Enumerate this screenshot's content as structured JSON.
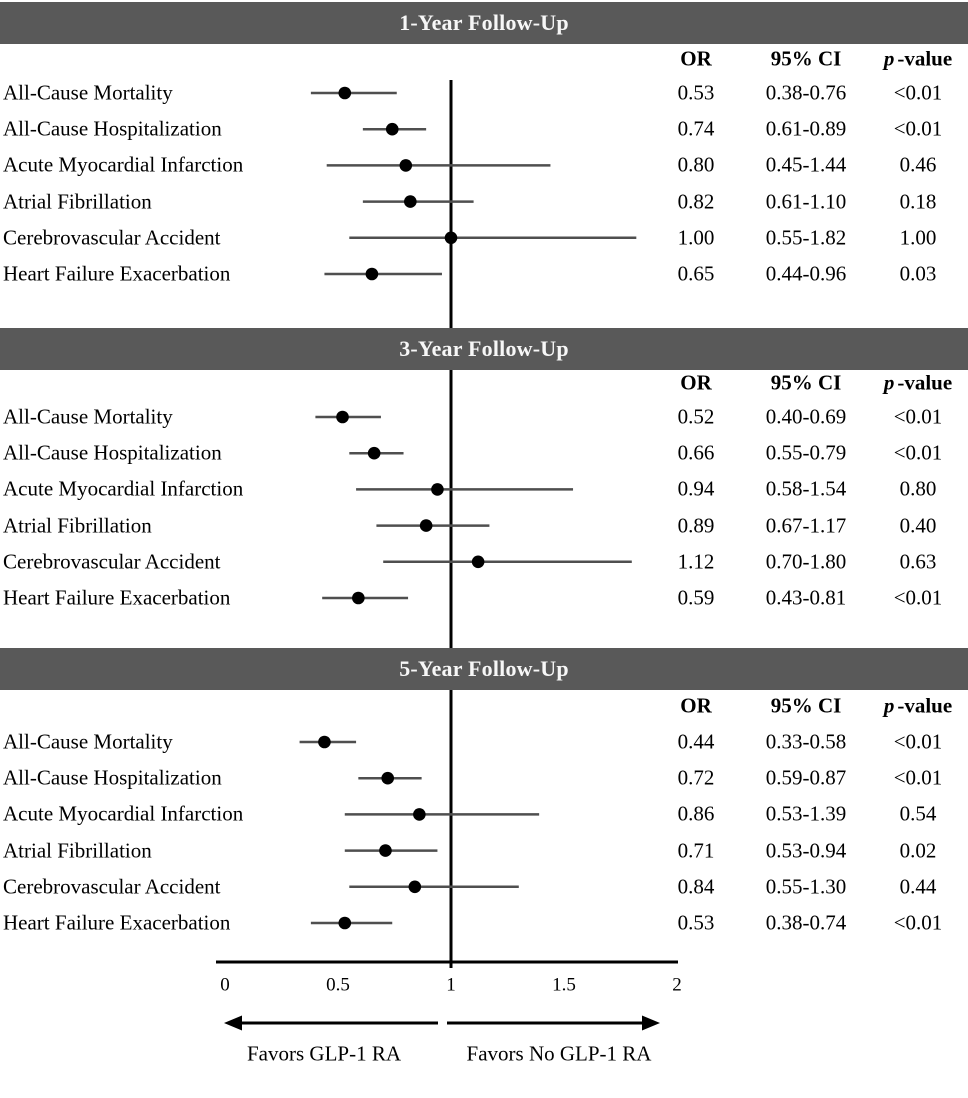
{
  "chart_data": {
    "type": "forest",
    "title": "",
    "xlabel": "",
    "x_axis": {
      "range": [
        0,
        2
      ],
      "tick_labels": [
        "0",
        "0.5",
        "1",
        "1.5",
        "2"
      ],
      "tick_values": [
        0,
        0.5,
        1,
        1.5,
        2
      ],
      "reference_line": 1
    },
    "favors_left": "Favors GLP-1 RA",
    "favors_right": "Favors No GLP-1 RA",
    "sections": [
      {
        "title": "1-Year Follow-Up",
        "rows": [
          {
            "label": "All-Cause Mortality",
            "or": 0.53,
            "ci_low": 0.38,
            "ci_high": 0.76,
            "or_text": "0.53",
            "ci_text": "0.38-0.76",
            "p_text": "<0.01"
          },
          {
            "label": "All-Cause Hospitalization",
            "or": 0.74,
            "ci_low": 0.61,
            "ci_high": 0.89,
            "or_text": "0.74",
            "ci_text": "0.61-0.89",
            "p_text": "<0.01"
          },
          {
            "label": "Acute Myocardial Infarction",
            "or": 0.8,
            "ci_low": 0.45,
            "ci_high": 1.44,
            "or_text": "0.80",
            "ci_text": "0.45-1.44",
            "p_text": "0.46"
          },
          {
            "label": "Atrial Fibrillation",
            "or": 0.82,
            "ci_low": 0.61,
            "ci_high": 1.1,
            "or_text": "0.82",
            "ci_text": "0.61-1.10",
            "p_text": "0.18"
          },
          {
            "label": "Cerebrovascular Accident",
            "or": 1.0,
            "ci_low": 0.55,
            "ci_high": 1.82,
            "or_text": "1.00",
            "ci_text": "0.55-1.82",
            "p_text": "1.00"
          },
          {
            "label": "Heart Failure Exacerbation",
            "or": 0.65,
            "ci_low": 0.44,
            "ci_high": 0.96,
            "or_text": "0.65",
            "ci_text": "0.44-0.96",
            "p_text": "0.03"
          }
        ]
      },
      {
        "title": "3-Year Follow-Up",
        "rows": [
          {
            "label": "All-Cause Mortality",
            "or": 0.52,
            "ci_low": 0.4,
            "ci_high": 0.69,
            "or_text": "0.52",
            "ci_text": "0.40-0.69",
            "p_text": "<0.01"
          },
          {
            "label": "All-Cause Hospitalization",
            "or": 0.66,
            "ci_low": 0.55,
            "ci_high": 0.79,
            "or_text": "0.66",
            "ci_text": "0.55-0.79",
            "p_text": "<0.01"
          },
          {
            "label": "Acute Myocardial Infarction",
            "or": 0.94,
            "ci_low": 0.58,
            "ci_high": 1.54,
            "or_text": "0.94",
            "ci_text": "0.58-1.54",
            "p_text": "0.80"
          },
          {
            "label": "Atrial Fibrillation",
            "or": 0.89,
            "ci_low": 0.67,
            "ci_high": 1.17,
            "or_text": "0.89",
            "ci_text": "0.67-1.17",
            "p_text": "0.40"
          },
          {
            "label": "Cerebrovascular Accident",
            "or": 1.12,
            "ci_low": 0.7,
            "ci_high": 1.8,
            "or_text": "1.12",
            "ci_text": "0.70-1.80",
            "p_text": "0.63"
          },
          {
            "label": "Heart Failure Exacerbation",
            "or": 0.59,
            "ci_low": 0.43,
            "ci_high": 0.81,
            "or_text": "0.59",
            "ci_text": "0.43-0.81",
            "p_text": "<0.01"
          }
        ]
      },
      {
        "title": "5-Year Follow-Up",
        "rows": [
          {
            "label": "All-Cause Mortality",
            "or": 0.44,
            "ci_low": 0.33,
            "ci_high": 0.58,
            "or_text": "0.44",
            "ci_text": "0.33-0.58",
            "p_text": "<0.01"
          },
          {
            "label": "All-Cause Hospitalization",
            "or": 0.72,
            "ci_low": 0.59,
            "ci_high": 0.87,
            "or_text": "0.72",
            "ci_text": "0.59-0.87",
            "p_text": "<0.01"
          },
          {
            "label": "Acute Myocardial Infarction",
            "or": 0.86,
            "ci_low": 0.53,
            "ci_high": 1.39,
            "or_text": "0.86",
            "ci_text": "0.53-1.39",
            "p_text": "0.54"
          },
          {
            "label": "Atrial Fibrillation",
            "or": 0.71,
            "ci_low": 0.53,
            "ci_high": 0.94,
            "or_text": "0.71",
            "ci_text": "0.53-0.94",
            "p_text": "0.02"
          },
          {
            "label": "Cerebrovascular Accident",
            "or": 0.84,
            "ci_low": 0.55,
            "ci_high": 1.3,
            "or_text": "0.84",
            "ci_text": "0.55-1.30",
            "p_text": "0.44"
          },
          {
            "label": "Heart Failure Exacerbation",
            "or": 0.53,
            "ci_low": 0.38,
            "ci_high": 0.74,
            "or_text": "0.53",
            "ci_text": "0.38-0.74",
            "p_text": "<0.01"
          }
        ]
      }
    ]
  },
  "columns": {
    "or": "OR",
    "ci": "95% CI",
    "p_italic": "p",
    "p_rest": "-value"
  },
  "colors": {
    "header_bg": "#595959",
    "header_text": "#F7F7F7",
    "point": "#000000",
    "ci_line": "#4F4F4F",
    "axis_line": "#000000"
  }
}
